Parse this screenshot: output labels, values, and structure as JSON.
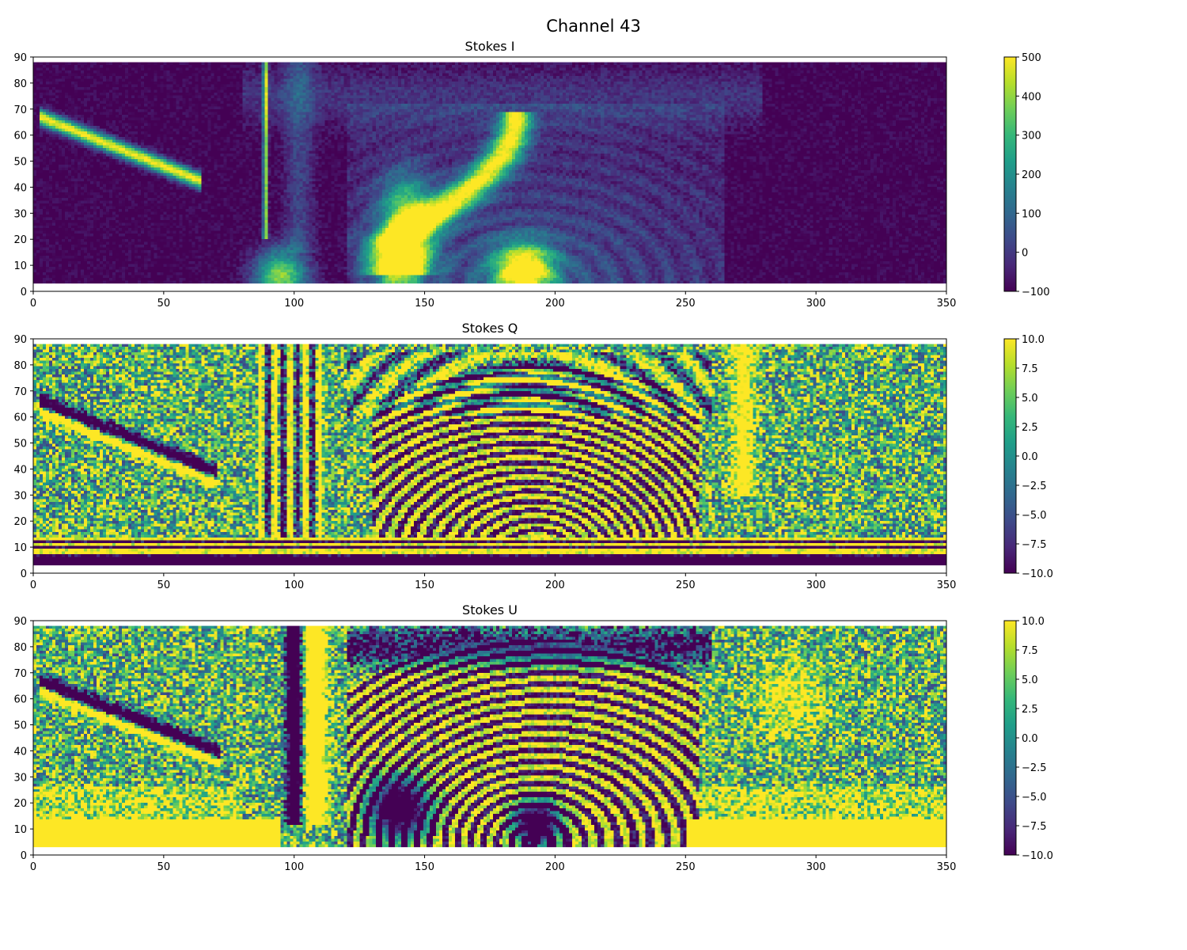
{
  "figure": {
    "suptitle": "Channel 43"
  },
  "chart_data": [
    {
      "type": "heatmap",
      "title": "Stokes I",
      "xlabel": "",
      "ylabel": "",
      "xlim": [
        0,
        350
      ],
      "ylim": [
        0,
        90
      ],
      "x_ticks": [
        "0",
        "50",
        "100",
        "150",
        "200",
        "250",
        "300",
        "350"
      ],
      "y_ticks": [
        "0",
        "10",
        "20",
        "30",
        "40",
        "50",
        "60",
        "70",
        "80",
        "90"
      ],
      "data_y_range": [
        3,
        88
      ],
      "colormap": "viridis",
      "color_range": [
        -100,
        500
      ],
      "colorbar_ticks": [
        "−100",
        "0",
        "100",
        "200",
        "300",
        "400",
        "500"
      ],
      "pattern": "intensity"
    },
    {
      "type": "heatmap",
      "title": "Stokes Q",
      "xlabel": "",
      "ylabel": "",
      "xlim": [
        0,
        350
      ],
      "ylim": [
        0,
        90
      ],
      "x_ticks": [
        "0",
        "50",
        "100",
        "150",
        "200",
        "250",
        "300",
        "350"
      ],
      "y_ticks": [
        "0",
        "10",
        "20",
        "30",
        "40",
        "50",
        "60",
        "70",
        "80",
        "90"
      ],
      "data_y_range": [
        3,
        88
      ],
      "colormap": "viridis",
      "color_range": [
        -10,
        10
      ],
      "colorbar_ticks": [
        "−10.0",
        "−7.5",
        "−5.0",
        "−2.5",
        "0.0",
        "2.5",
        "5.0",
        "7.5",
        "10.0"
      ],
      "pattern": "polarization_q"
    },
    {
      "type": "heatmap",
      "title": "Stokes U",
      "xlabel": "",
      "ylabel": "",
      "xlim": [
        0,
        350
      ],
      "ylim": [
        0,
        90
      ],
      "x_ticks": [
        "0",
        "50",
        "100",
        "150",
        "200",
        "250",
        "300",
        "350"
      ],
      "y_ticks": [
        "0",
        "10",
        "20",
        "30",
        "40",
        "50",
        "60",
        "70",
        "80",
        "90"
      ],
      "data_y_range": [
        3,
        88
      ],
      "colormap": "viridis",
      "color_range": [
        -10,
        10
      ],
      "colorbar_ticks": [
        "−10.0",
        "−7.5",
        "−5.0",
        "−2.5",
        "0.0",
        "2.5",
        "5.0",
        "7.5",
        "10.0"
      ],
      "pattern": "polarization_u"
    }
  ]
}
